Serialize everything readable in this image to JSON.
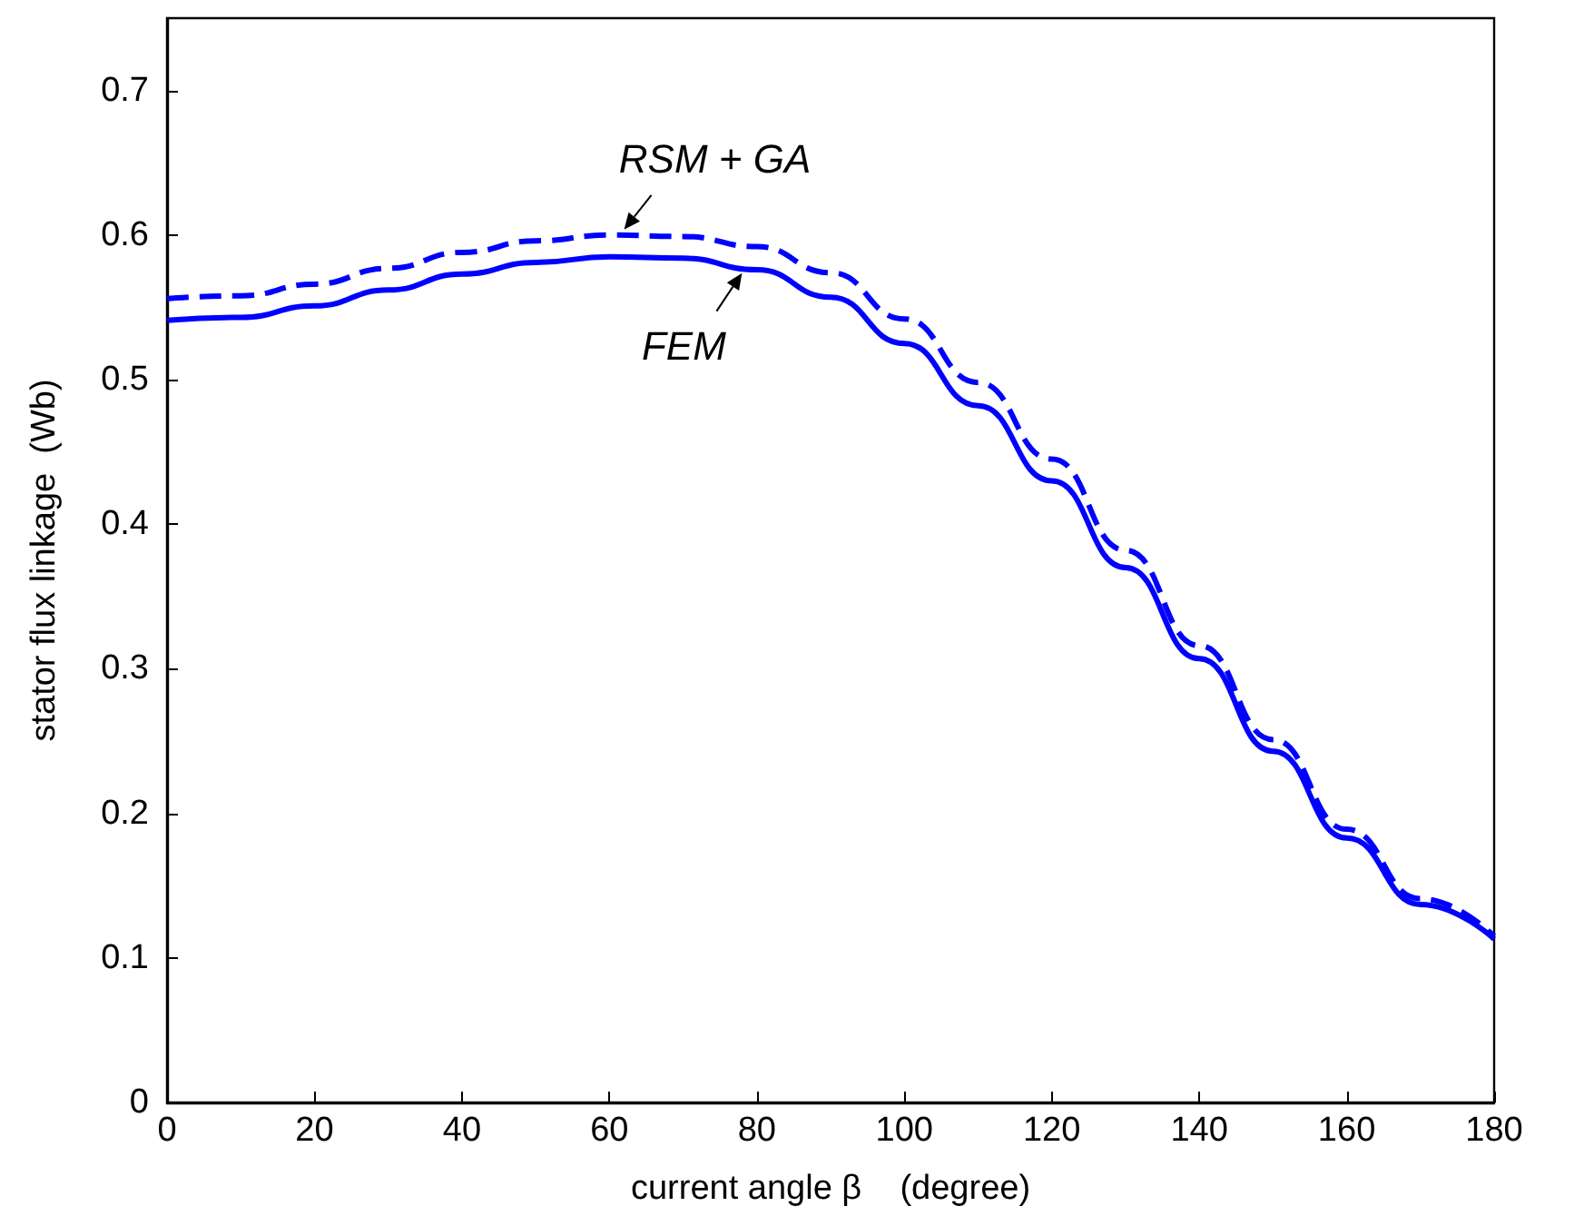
{
  "chart_data": {
    "type": "line",
    "xlabel": "current angle β    (degree)",
    "ylabel": "stator flux linkage  (Wb)",
    "x": [
      0,
      10,
      20,
      30,
      40,
      50,
      60,
      70,
      80,
      90,
      100,
      110,
      120,
      130,
      140,
      150,
      160,
      170,
      180
    ],
    "series": [
      {
        "color": "#0000ff",
        "line_style": "dashed",
        "values": [
          0.556,
          0.558,
          0.566,
          0.577,
          0.588,
          0.596,
          0.6,
          0.599,
          0.592,
          0.574,
          0.542,
          0.498,
          0.445,
          0.382,
          0.316,
          0.251,
          0.189,
          0.141,
          0.115
        ]
      },
      {
        "color": "#0000ff",
        "line_style": "solid",
        "values": [
          0.541,
          0.543,
          0.551,
          0.562,
          0.573,
          0.581,
          0.585,
          0.584,
          0.576,
          0.557,
          0.525,
          0.482,
          0.43,
          0.37,
          0.307,
          0.243,
          0.183,
          0.137,
          0.113
        ]
      }
    ],
    "annotations": [
      {
        "text": "RSM + GA",
        "x": 62,
        "y": 0.6
      },
      {
        "text": "FEM",
        "x": 77,
        "y": 0.58
      }
    ],
    "xlim": [
      0,
      180
    ],
    "xticks": [
      0,
      20,
      40,
      60,
      80,
      100,
      120,
      140,
      160,
      180
    ],
    "ylim": [
      0,
      0.75
    ],
    "yticks": [
      0,
      0.1,
      0.2,
      0.3,
      0.4,
      0.5,
      0.6,
      0.7
    ],
    "marker": "none",
    "grid": false
  }
}
